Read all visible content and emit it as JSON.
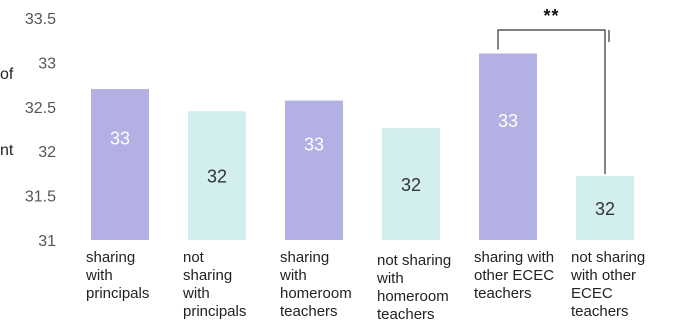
{
  "chart_data": {
    "type": "bar",
    "title": "",
    "xlabel": "",
    "ylabel_fragments": [
      "of",
      "nt"
    ],
    "ylim": [
      31,
      33.5
    ],
    "yticks": [
      "33.5",
      "33",
      "32.5",
      "32",
      "31.5",
      "31"
    ],
    "categories": [
      [
        "sharing",
        "with",
        "principals"
      ],
      [
        "not",
        "sharing",
        "with",
        "principals"
      ],
      [
        "sharing",
        "with",
        "homeroom",
        "teachers"
      ],
      [
        "not sharing",
        "with",
        "homeroom",
        "teachers"
      ],
      [
        "sharing with",
        "other ECEC",
        "teachers"
      ],
      [
        "not sharing",
        "with other",
        "ECEC",
        "teachers"
      ]
    ],
    "values": [
      32.7,
      32.45,
      32.57,
      32.26,
      33.1,
      31.72
    ],
    "data_labels": [
      "33",
      "32",
      "33",
      "32",
      "33",
      "32"
    ],
    "significance": {
      "label": "**",
      "between": [
        4,
        5
      ]
    },
    "colors": {
      "sharing": "#b3b0e3",
      "not_sharing": "#d3eeef",
      "label_on_sharing": "#ffffff",
      "label_on_not_sharing": "#333333",
      "axis_text": "#555555"
    }
  }
}
